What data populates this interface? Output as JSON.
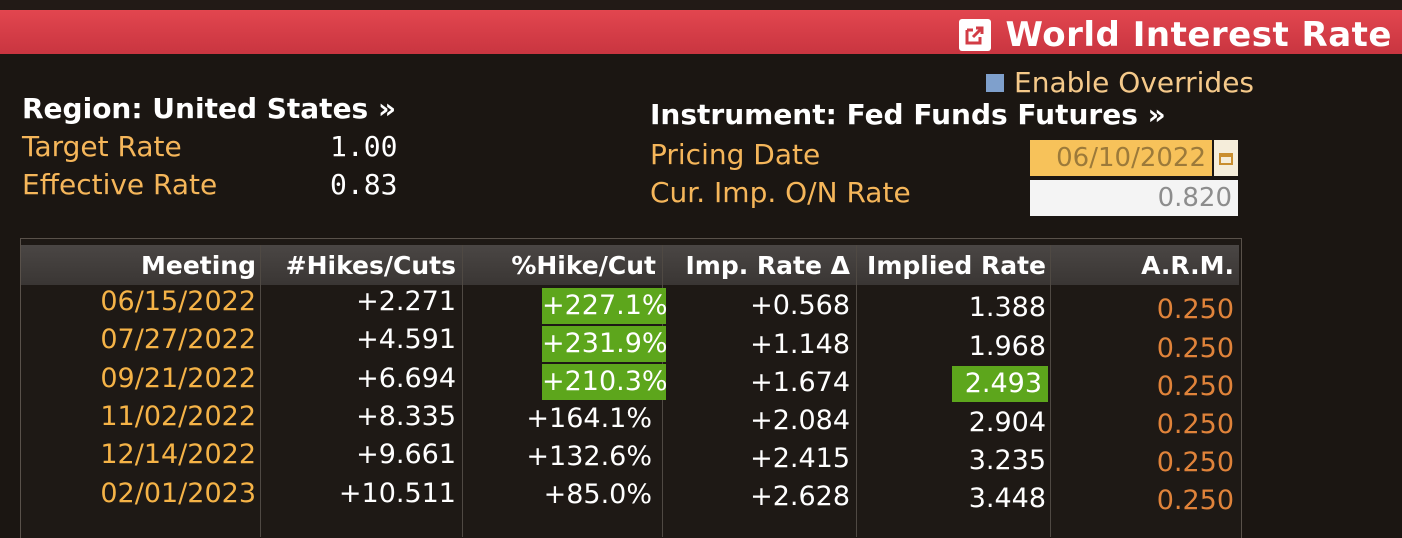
{
  "header": {
    "title": "World Interest Rate",
    "icon": "external-link-icon",
    "accent_color": "#d23c45"
  },
  "overrides": {
    "label": "Enable Overrides"
  },
  "left_info": {
    "region": "Region: United States »",
    "target_rate_label": "Target Rate",
    "target_rate_value": "1.00",
    "effective_rate_label": "Effective Rate",
    "effective_rate_value": "0.83"
  },
  "right_info": {
    "instrument": "Instrument: Fed Funds Futures »",
    "pricing_date_label": "Pricing Date",
    "pricing_date_value": "06/10/2022",
    "cur_rate_label": "Cur. Imp. O/N Rate",
    "cur_rate_value": "0.820"
  },
  "table": {
    "columns": [
      "Meeting",
      "#Hikes/Cuts",
      "%Hike/Cut",
      "Imp. Rate Δ",
      "Implied Rate",
      "A.R.M."
    ],
    "rows": [
      {
        "meeting": "06/15/2022",
        "hikes": "+2.271",
        "pct": "+227.1%",
        "delta": "+0.568",
        "implied": "1.388",
        "arm": "0.250"
      },
      {
        "meeting": "07/27/2022",
        "hikes": "+4.591",
        "pct": "+231.9%",
        "delta": "+1.148",
        "implied": "1.968",
        "arm": "0.250"
      },
      {
        "meeting": "09/21/2022",
        "hikes": "+6.694",
        "pct": "+210.3%",
        "delta": "+1.674",
        "implied": "2.493",
        "arm": "0.250"
      },
      {
        "meeting": "11/02/2022",
        "hikes": "+8.335",
        "pct": "+164.1%",
        "delta": "+2.084",
        "implied": "2.904",
        "arm": "0.250"
      },
      {
        "meeting": "12/14/2022",
        "hikes": "+9.661",
        "pct": "+132.6%",
        "delta": "+2.415",
        "implied": "3.235",
        "arm": "0.250"
      },
      {
        "meeting": "02/01/2023",
        "hikes": "+10.511",
        "pct": "+85.0%",
        "delta": "+2.628",
        "implied": "3.448",
        "arm": "0.250"
      }
    ],
    "highlight_color": "#5da61c"
  }
}
